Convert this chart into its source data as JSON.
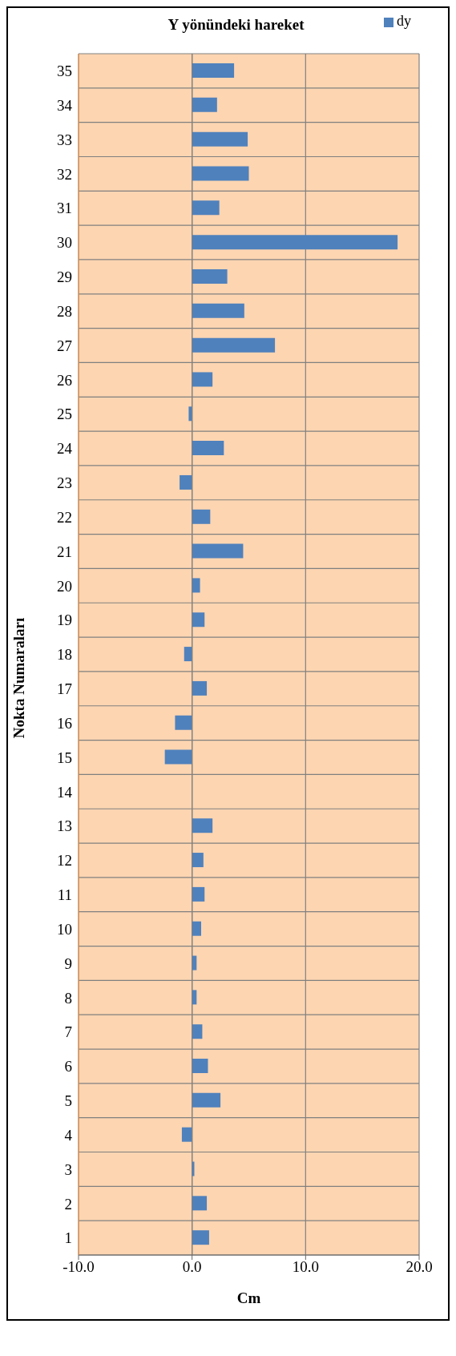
{
  "chart_data": {
    "type": "bar",
    "orientation": "horizontal",
    "title": "Y yönündeki hareket",
    "xlabel": "Cm",
    "ylabel": "Nokta Numaraları",
    "categories": [
      "35",
      "34",
      "33",
      "32",
      "31",
      "30",
      "29",
      "28",
      "27",
      "26",
      "25",
      "24",
      "23",
      "22",
      "21",
      "20",
      "19",
      "18",
      "17",
      "16",
      "15",
      "14",
      "13",
      "12",
      "11",
      "10",
      "9",
      "8",
      "7",
      "6",
      "5",
      "4",
      "3",
      "2",
      "1"
    ],
    "series": [
      {
        "name": "dy",
        "color": "#4f81bd",
        "values": [
          3.7,
          2.2,
          4.9,
          5.0,
          2.4,
          18.1,
          3.1,
          4.6,
          7.3,
          1.8,
          -0.3,
          2.8,
          -1.1,
          1.6,
          4.5,
          0.7,
          1.1,
          -0.7,
          1.3,
          -1.5,
          -2.4,
          0,
          1.8,
          1.0,
          1.1,
          0.8,
          0.4,
          0.4,
          0.9,
          1.4,
          2.5,
          -0.9,
          0.2,
          1.3,
          1.5
        ]
      }
    ],
    "xlim": [
      -10,
      20
    ],
    "xticks": [
      {
        "value": -10,
        "label": "-10.0"
      },
      {
        "value": 0,
        "label": "0.0"
      },
      {
        "value": 10,
        "label": "10.0"
      },
      {
        "value": 20,
        "label": "20.0"
      }
    ],
    "grid": true,
    "legend": "top right"
  }
}
